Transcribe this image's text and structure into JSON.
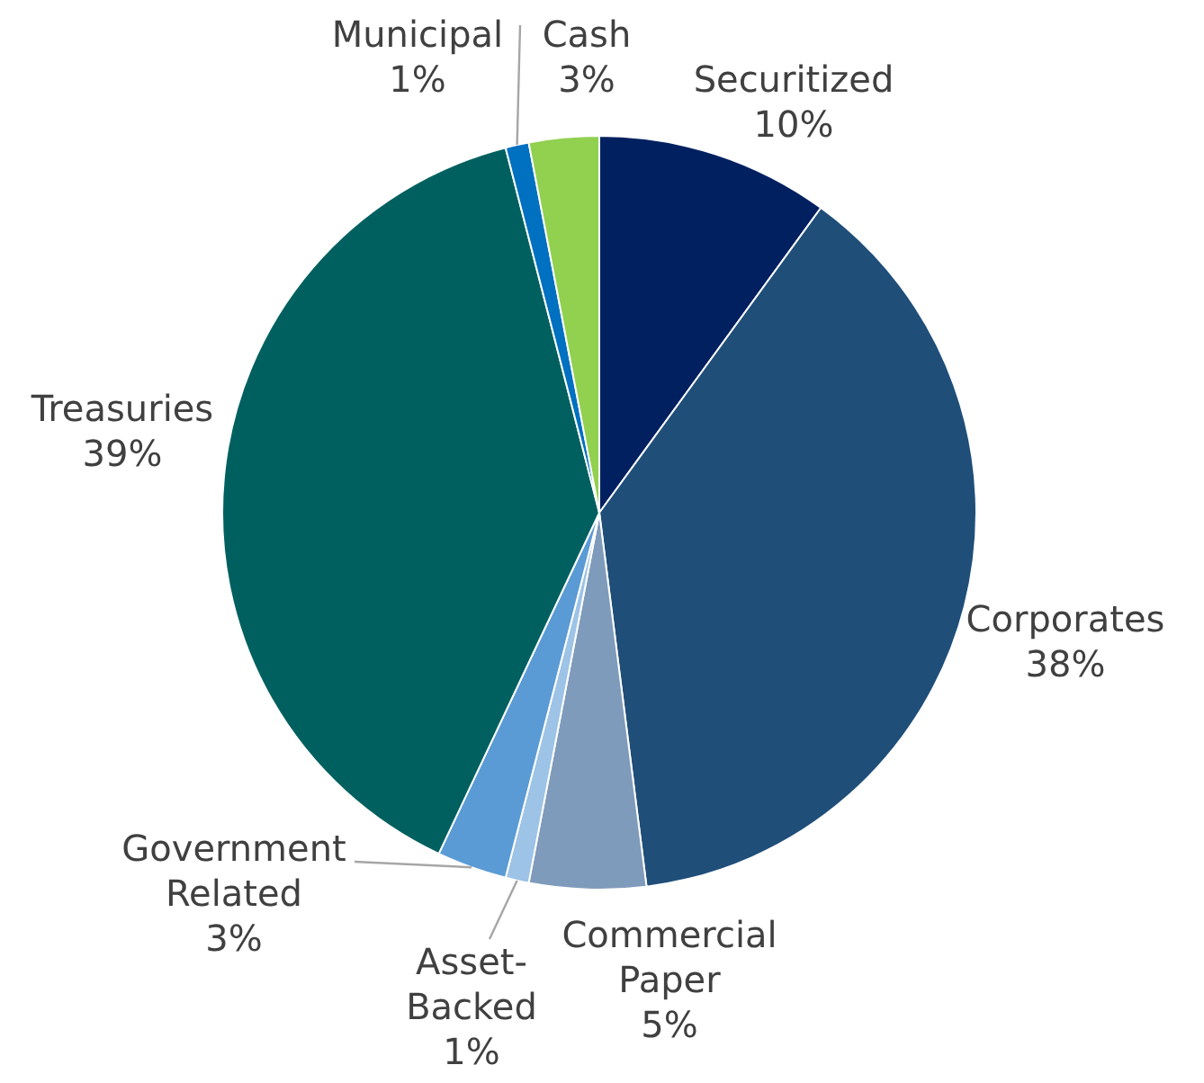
{
  "chart_data": {
    "type": "pie",
    "categories": [
      "Securitized",
      "Corporates",
      "Commercial Paper",
      "Asset-Backed",
      "Government Related",
      "Treasuries",
      "Municipal",
      "Cash"
    ],
    "values": [
      10,
      38,
      5,
      1,
      3,
      39,
      1,
      3
    ],
    "colors": [
      "#002060",
      "#1f4e79",
      "#7f9bbb",
      "#9dc3e6",
      "#5b9bd5",
      "#006060",
      "#0070c0",
      "#92d050"
    ],
    "value_labels": [
      "10%",
      "38%",
      "5%",
      "1%",
      "3%",
      "39%",
      "1%",
      "3%"
    ],
    "legend": false
  }
}
